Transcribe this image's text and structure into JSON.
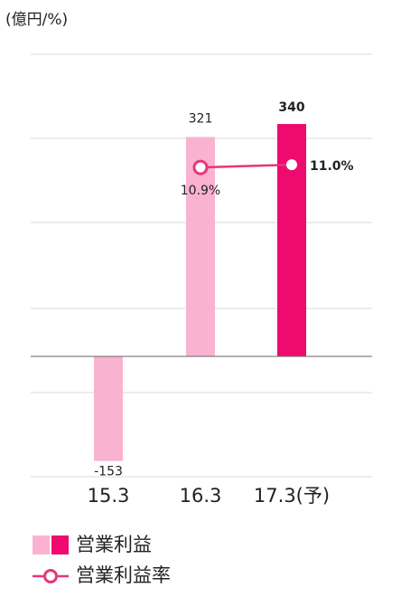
{
  "chart_data": {
    "type": "bar",
    "axis_unit": "(億円/%)",
    "categories": [
      "15.3",
      "16.3",
      "17.3(予)"
    ],
    "series": [
      {
        "name": "営業利益",
        "type": "bar",
        "colors": [
          "#f9b3d1",
          "#f9b3d1",
          "#ee0a6e"
        ],
        "values": [
          -153,
          321,
          340
        ]
      },
      {
        "name": "営業利益率",
        "type": "line",
        "axis": "y2",
        "color": "#e8357b",
        "values": [
          null,
          10.9,
          11.0
        ],
        "value_labels": [
          null,
          "10.9%",
          "11.0%"
        ]
      }
    ],
    "ylim": [
      -176,
      442
    ],
    "y2lim": [
      -0.5,
      15.07
    ]
  }
}
